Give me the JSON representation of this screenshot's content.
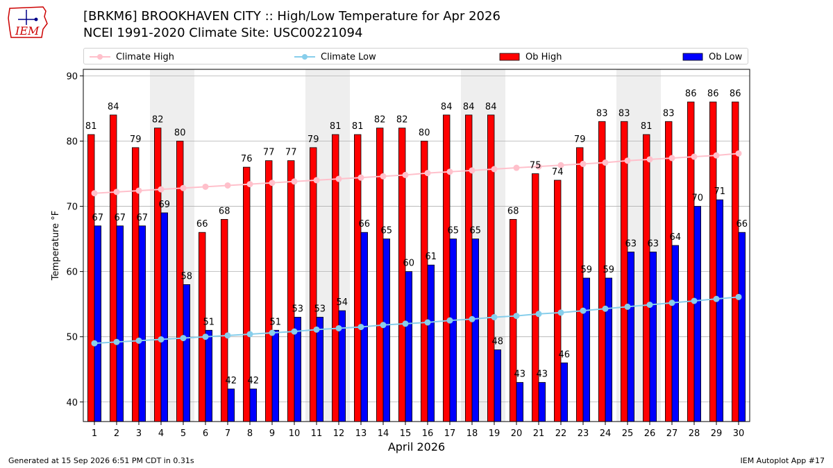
{
  "header": {
    "title_line1": "[BRKM6] BROOKHAVEN CITY :: High/Low Temperature for Apr 2026",
    "title_line2": "NCEI 1991-2020 Climate Site: USC00221094"
  },
  "logo": {
    "text": "IEM",
    "color": "#cc0000"
  },
  "legend": {
    "items": [
      {
        "label": "Climate High",
        "kind": "line",
        "color": "#ffc0cb"
      },
      {
        "label": "Climate Low",
        "kind": "line",
        "color": "#87ceeb"
      },
      {
        "label": "Ob High",
        "kind": "bar",
        "color": "#ff0000"
      },
      {
        "label": "Ob Low",
        "kind": "bar",
        "color": "#0000ff"
      }
    ]
  },
  "chart_data": {
    "type": "bar",
    "title": "[BRKM6] BROOKHAVEN CITY :: High/Low Temperature for Apr 2026",
    "xlabel": "April 2026",
    "ylabel": "Temperature °F",
    "ylim": [
      37,
      91
    ],
    "yticks": [
      40,
      50,
      60,
      70,
      80,
      90
    ],
    "grid": true,
    "legend_position": "top",
    "categories": [
      "1",
      "2",
      "3",
      "4",
      "5",
      "6",
      "7",
      "8",
      "9",
      "10",
      "11",
      "12",
      "13",
      "14",
      "15",
      "16",
      "17",
      "18",
      "19",
      "20",
      "21",
      "22",
      "23",
      "24",
      "25",
      "26",
      "27",
      "28",
      "29",
      "30"
    ],
    "weekend_days": [
      4,
      5,
      11,
      12,
      18,
      19,
      25,
      26
    ],
    "series": [
      {
        "name": "Ob High",
        "type": "bar",
        "color": "#ff0000",
        "values": [
          81,
          84,
          79,
          82,
          80,
          66,
          68,
          76,
          77,
          77,
          79,
          81,
          81,
          82,
          82,
          80,
          84,
          84,
          84,
          68,
          75,
          74,
          79,
          83,
          83,
          81,
          83,
          86,
          86,
          86
        ]
      },
      {
        "name": "Ob Low",
        "type": "bar",
        "color": "#0000ff",
        "values": [
          67,
          67,
          67,
          69,
          58,
          51,
          42,
          42,
          51,
          53,
          53,
          54,
          66,
          65,
          60,
          61,
          65,
          65,
          48,
          43,
          43,
          46,
          59,
          59,
          63,
          63,
          64,
          70,
          71,
          66
        ]
      },
      {
        "name": "Climate High",
        "type": "line",
        "color": "#ffc0cb",
        "values": [
          72.0,
          72.2,
          72.4,
          72.6,
          72.8,
          73.0,
          73.2,
          73.4,
          73.6,
          73.8,
          74.0,
          74.2,
          74.4,
          74.6,
          74.8,
          75.1,
          75.3,
          75.5,
          75.7,
          75.9,
          76.1,
          76.3,
          76.5,
          76.7,
          77.0,
          77.2,
          77.4,
          77.6,
          77.8,
          78.1
        ]
      },
      {
        "name": "Climate Low",
        "type": "line",
        "color": "#87ceeb",
        "values": [
          49.0,
          49.2,
          49.4,
          49.6,
          49.8,
          50.0,
          50.2,
          50.4,
          50.6,
          50.8,
          51.1,
          51.3,
          51.5,
          51.8,
          52.0,
          52.2,
          52.5,
          52.7,
          53.0,
          53.2,
          53.5,
          53.7,
          54.0,
          54.3,
          54.6,
          54.9,
          55.2,
          55.5,
          55.8,
          56.1
        ]
      }
    ]
  },
  "footer": {
    "generated": "Generated at 15 Sep 2026 6:51 PM CDT in 0.31s",
    "app": "IEM Autoplot App #17"
  }
}
